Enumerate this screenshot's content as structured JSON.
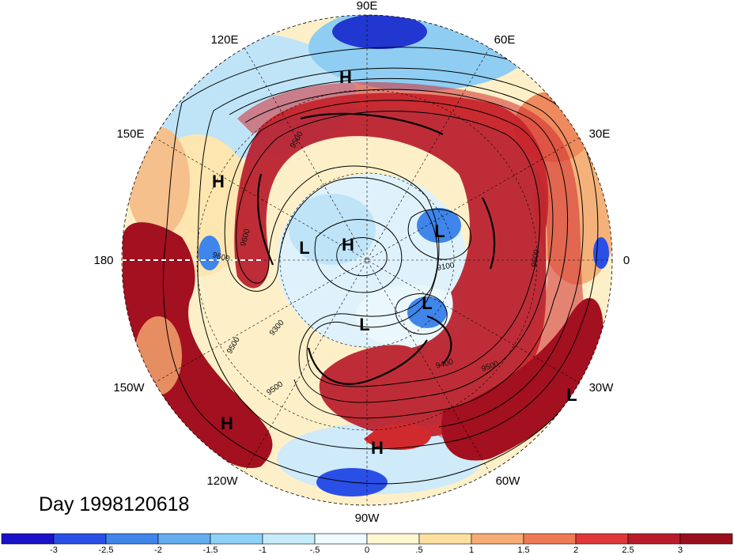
{
  "title": "Day 1998120618",
  "longitude_labels": {
    "top": "90E",
    "upper_right": "60E",
    "right_upper": "30E",
    "right": "0",
    "right_lower": "30W",
    "lower_right": "60W",
    "bottom": "90W",
    "lower_left": "120W",
    "left_lower": "150W",
    "left": "180",
    "left_upper": "150E",
    "upper_left": "120E"
  },
  "pressure_systems": [
    {
      "type": "H"
    },
    {
      "type": "H"
    },
    {
      "type": "H"
    },
    {
      "type": "H"
    },
    {
      "type": "H"
    },
    {
      "type": "L"
    },
    {
      "type": "L"
    },
    {
      "type": "L"
    },
    {
      "type": "L"
    },
    {
      "type": "L"
    }
  ],
  "contour_labels": [
    "9500",
    "9600",
    "9300",
    "9500",
    "9400",
    "9500",
    "9600",
    "9600",
    "9500",
    "9100"
  ],
  "colorbar": {
    "tick_labels": [
      "-3",
      "-2.5",
      "-2",
      "-1.5",
      "-1",
      "-.5",
      "0",
      ".5",
      "1",
      "1.5",
      "2",
      "2.5",
      "3"
    ],
    "colors": [
      "#1a12c8",
      "#2a4fe6",
      "#3f85ea",
      "#62aef0",
      "#8fd2f8",
      "#c6ecfb",
      "#eefaff",
      "#fff6d2",
      "#fde0a0",
      "#f6ac72",
      "#ee7a55",
      "#e0383a",
      "#b81c2a",
      "#9a0f1d"
    ]
  },
  "colors": {
    "deep_red": "#a3101f",
    "red": "#d12a2e",
    "orange": "#f0925e",
    "pale": "#fdf0c8",
    "light_blue": "#bfe4f8",
    "blue": "#5aa0ea",
    "deep_blue": "#2236d0",
    "contour": "#000000"
  }
}
